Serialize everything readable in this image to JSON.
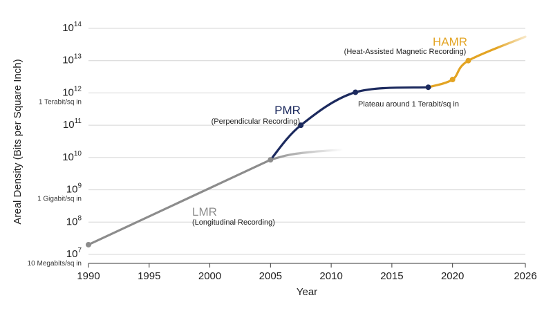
{
  "chart_data": {
    "type": "line",
    "xlabel": "Year",
    "ylabel": "Areal Density (Bits per Square Inch)",
    "xlim": [
      1990,
      2026
    ],
    "ylim_log10": [
      7,
      14
    ],
    "y_scale": "log",
    "grid": "horizontal",
    "x_ticks": [
      "1990",
      "1995",
      "2000",
      "2005",
      "2010",
      "2015",
      "2020",
      "2026"
    ],
    "y_ticks": [
      {
        "base": "10",
        "exp": "14",
        "note": ""
      },
      {
        "base": "10",
        "exp": "13",
        "note": ""
      },
      {
        "base": "10",
        "exp": "12",
        "note": "1 Terabit/sq in"
      },
      {
        "base": "10",
        "exp": "11",
        "note": ""
      },
      {
        "base": "10",
        "exp": "10",
        "note": ""
      },
      {
        "base": "10",
        "exp": "9",
        "note": "1 Gigabit/sq in"
      },
      {
        "base": "10",
        "exp": "8",
        "note": ""
      },
      {
        "base": "10",
        "exp": "7",
        "note": "10 Megabits/sq in"
      }
    ],
    "series": [
      {
        "name": "LMR",
        "subtitle": "(Longitudinal Recording)",
        "color": "#8c8c8c",
        "points": [
          [
            1990,
            20000000.0
          ],
          [
            2005,
            8500000000.0
          ]
        ],
        "fade_tail": [
          [
            2005,
            8500000000.0
          ],
          [
            2006.5,
            12000000000.0
          ],
          [
            2008.5,
            15000000000.0
          ],
          [
            2011,
            17500000000.0
          ]
        ]
      },
      {
        "name": "PMR",
        "subtitle": "(Perpendicular Recording)",
        "color": "#1c2a5e",
        "points": [
          [
            2005,
            8500000000.0
          ],
          [
            2007.5,
            100000000000.0
          ],
          [
            2012,
            1050000000000.0
          ],
          [
            2018,
            1500000000000.0
          ]
        ]
      },
      {
        "name": "HAMR",
        "subtitle": "(Heat-Assisted Magnetic Recording)",
        "color": "#e3a423",
        "points": [
          [
            2018,
            1500000000000.0
          ],
          [
            2020,
            2600000000000.0
          ],
          [
            2021.3,
            10000000000000.0
          ],
          [
            2026,
            55000000000000.0
          ]
        ]
      }
    ],
    "annotations": [
      {
        "text": "Plateau around 1 Terabit/sq in"
      }
    ]
  }
}
